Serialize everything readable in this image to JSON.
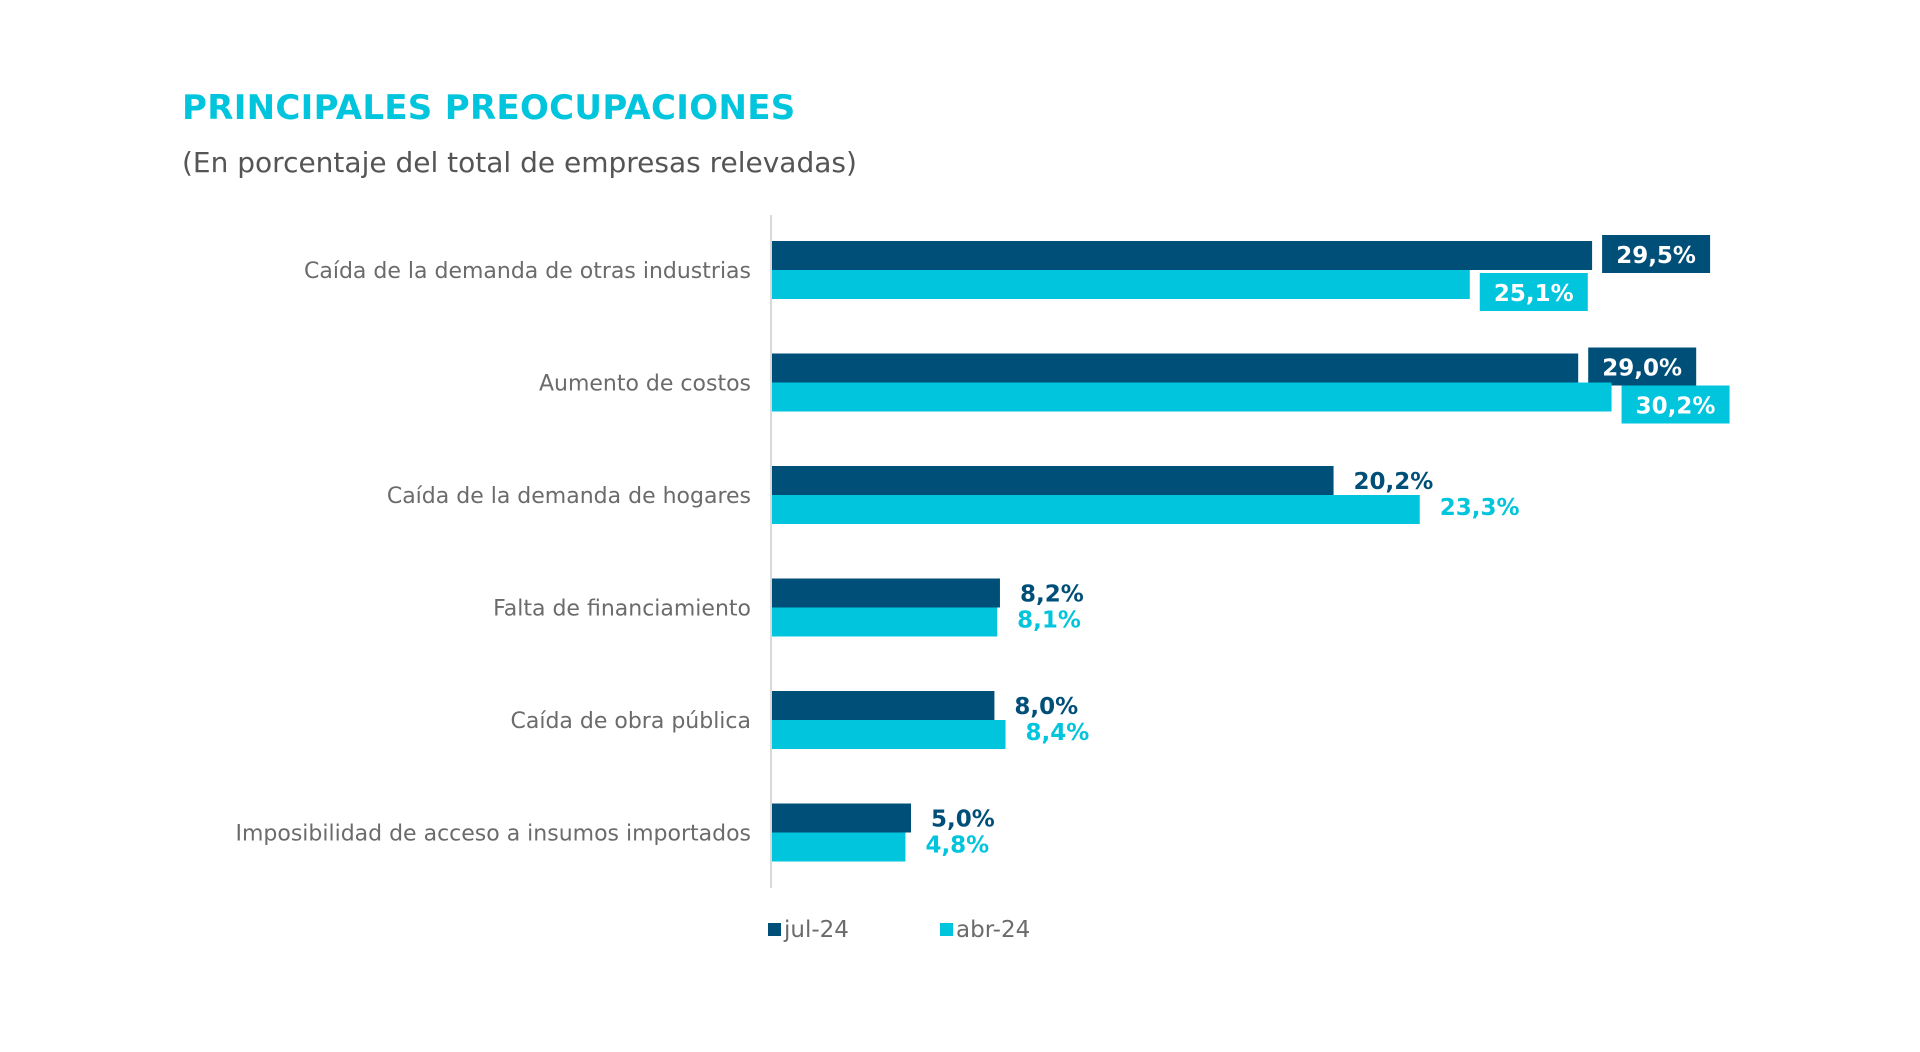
{
  "header": {
    "title": "PRINCIPALES PREOCUPACIONES",
    "subtitle": "(En porcentaje del total de empresas relevadas)"
  },
  "colors": {
    "jul": "#004f78",
    "abr": "#00c5dc",
    "label_gray": "#6b6b6b",
    "axis": "#d9d9d9"
  },
  "chart_data": {
    "type": "bar",
    "orientation": "horizontal",
    "title": "PRINCIPALES PREOCUPACIONES",
    "subtitle": "(En porcentaje del total de empresas relevadas)",
    "categories": [
      "Caída de la demanda de otras industrias",
      "Aumento de costos",
      "Caída de la demanda de hogares",
      "Falta de financiamiento",
      "Caída de obra pública",
      "Imposibilidad de acceso a insumos importados"
    ],
    "series": [
      {
        "name": "jul-24",
        "values": [
          29.5,
          29.0,
          20.2,
          8.2,
          8.0,
          5.0
        ],
        "labels": [
          "29,5%",
          "29,0%",
          "20,2%",
          "8,2%",
          "8,0%",
          "5,0%"
        ]
      },
      {
        "name": "abr-24",
        "values": [
          25.1,
          30.2,
          23.3,
          8.1,
          8.4,
          4.8
        ],
        "labels": [
          "25,1%",
          "30,2%",
          "23,3%",
          "8,1%",
          "8,4%",
          "4,8%"
        ]
      }
    ],
    "boxed_labels": [
      true,
      true,
      false,
      false,
      false,
      false
    ],
    "xlim": [
      0,
      32
    ],
    "grid": false,
    "legend": "bottom"
  }
}
